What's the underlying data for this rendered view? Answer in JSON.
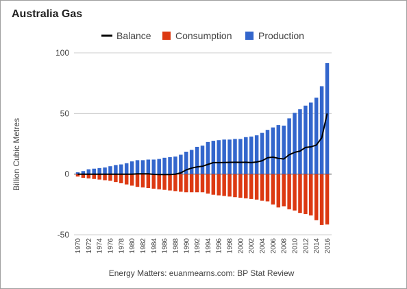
{
  "title": "Australia Gas",
  "source": "Energy Matters: euanmearns.com: BP Stat Review",
  "colors": {
    "balance": "#000000",
    "consumption": "#dc3912",
    "production": "#3366cc",
    "grid": "#cccccc",
    "zero_line": "#333333"
  },
  "chart_data": {
    "type": "bar",
    "title": "Australia Gas",
    "ylabel": "Billion Cubic Metres",
    "xlabel": "",
    "ylim": [
      -50,
      100
    ],
    "yticks": [
      -50,
      0,
      50,
      100
    ],
    "legend_position": "top",
    "grid": true,
    "x": [
      1970,
      1971,
      1972,
      1973,
      1974,
      1975,
      1976,
      1977,
      1978,
      1979,
      1980,
      1981,
      1982,
      1983,
      1984,
      1985,
      1986,
      1987,
      1988,
      1989,
      1990,
      1991,
      1992,
      1993,
      1994,
      1995,
      1996,
      1997,
      1998,
      1999,
      2000,
      2001,
      2002,
      2003,
      2004,
      2005,
      2006,
      2007,
      2008,
      2009,
      2010,
      2011,
      2012,
      2013,
      2014,
      2015,
      2016
    ],
    "x_tick_labels": [
      "1970",
      "1972",
      "1974",
      "1976",
      "1978",
      "1980",
      "1982",
      "1984",
      "1986",
      "1988",
      "1990",
      "1992",
      "1994",
      "1996",
      "1998",
      "2000",
      "2002",
      "2004",
      "2006",
      "2008",
      "2010",
      "2012",
      "2014",
      "2016"
    ],
    "series": [
      {
        "name": "Balance",
        "type": "line",
        "values": [
          0,
          0,
          0,
          0,
          0,
          0,
          0,
          0,
          0,
          0,
          0,
          0.2,
          0.2,
          0.2,
          -0.2,
          -0.3,
          -0.3,
          -0.3,
          0,
          1,
          3.5,
          5,
          6,
          6.5,
          8,
          9.5,
          9.5,
          9.6,
          9.7,
          9.8,
          9.7,
          9.8,
          9.5,
          10,
          11,
          13.5,
          14,
          13,
          12.5,
          16,
          18,
          19,
          22,
          22.5,
          24,
          30,
          50
        ]
      },
      {
        "name": "Consumption",
        "type": "bar",
        "values": [
          -2,
          -3,
          -3.5,
          -4,
          -4.5,
          -5,
          -5.5,
          -6.5,
          -7.5,
          -8.5,
          -9.5,
          -10.5,
          -11,
          -11.5,
          -12,
          -12.5,
          -13,
          -13.5,
          -14,
          -14.5,
          -15,
          -15,
          -15,
          -15,
          -16,
          -17,
          -17.5,
          -18,
          -18.5,
          -19,
          -19.5,
          -20,
          -20.5,
          -21,
          -22,
          -22.5,
          -25,
          -27.5,
          -26.5,
          -29,
          -30,
          -32,
          -33,
          -34,
          -38,
          -42,
          -41.5
        ]
      },
      {
        "name": "Production",
        "type": "bar",
        "values": [
          1.5,
          2.5,
          4,
          4.5,
          5,
          5.5,
          6.5,
          7.5,
          8,
          9,
          10.5,
          11.5,
          11.5,
          12,
          12,
          12.5,
          13.5,
          14,
          14.5,
          16,
          18.5,
          20,
          22.5,
          23.5,
          26.5,
          27.5,
          28,
          28.5,
          28.5,
          29,
          29,
          30.5,
          31,
          32,
          34,
          36.5,
          38.5,
          40.5,
          40,
          46,
          50.5,
          53.5,
          56.5,
          59,
          63,
          72.5,
          91.5
        ]
      }
    ]
  }
}
